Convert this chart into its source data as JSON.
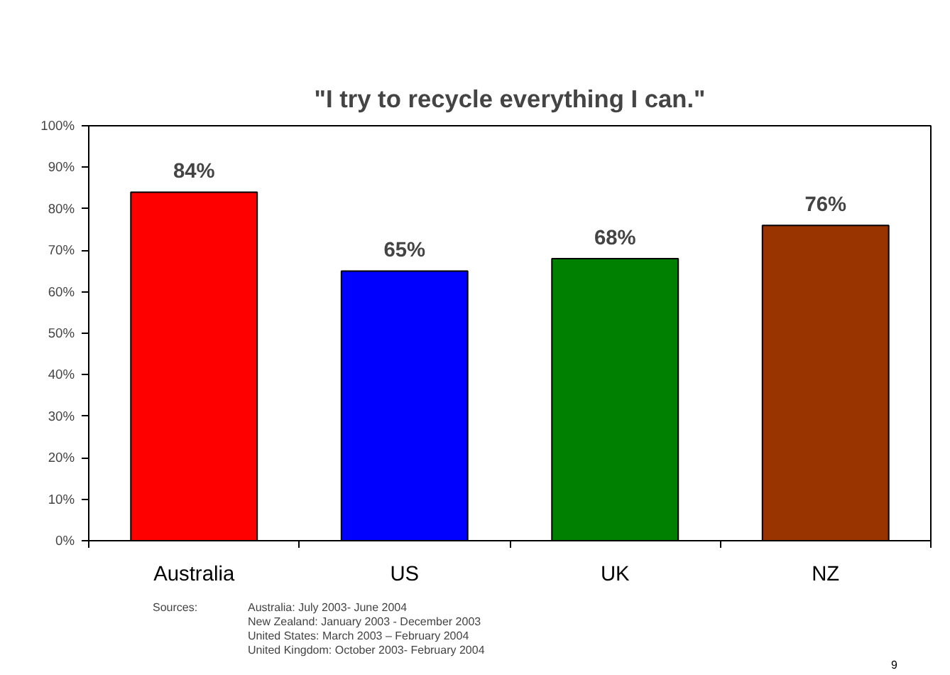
{
  "chart_data": {
    "type": "bar",
    "title": "\"I try to recycle everything I can.\"",
    "categories": [
      "Australia",
      "US",
      "UK",
      "NZ"
    ],
    "values": [
      84,
      65,
      68,
      76
    ],
    "colors": [
      "#ff0000",
      "#0000ff",
      "#008000",
      "#993300"
    ],
    "value_labels": [
      "84%",
      "65%",
      "68%",
      "76%"
    ],
    "ylim": [
      0,
      100
    ],
    "yticks": [
      {
        "value": 0,
        "label": "0%"
      },
      {
        "value": 10,
        "label": "10%"
      },
      {
        "value": 20,
        "label": "20%"
      },
      {
        "value": 30,
        "label": "30%"
      },
      {
        "value": 40,
        "label": "40%"
      },
      {
        "value": 50,
        "label": "50%"
      },
      {
        "value": 60,
        "label": "60%"
      },
      {
        "value": 70,
        "label": "70%"
      },
      {
        "value": 80,
        "label": "80%"
      },
      {
        "value": 90,
        "label": "90%"
      },
      {
        "value": 100,
        "label": "100%"
      }
    ],
    "grid": false,
    "annotations": [
      "Sources:",
      "Australia: July 2003- June 2004",
      "New Zealand: January 2003 - December 2003",
      "United States: March 2003 – February 2004",
      "United Kingdom: October 2003- February 2004",
      "9"
    ]
  }
}
